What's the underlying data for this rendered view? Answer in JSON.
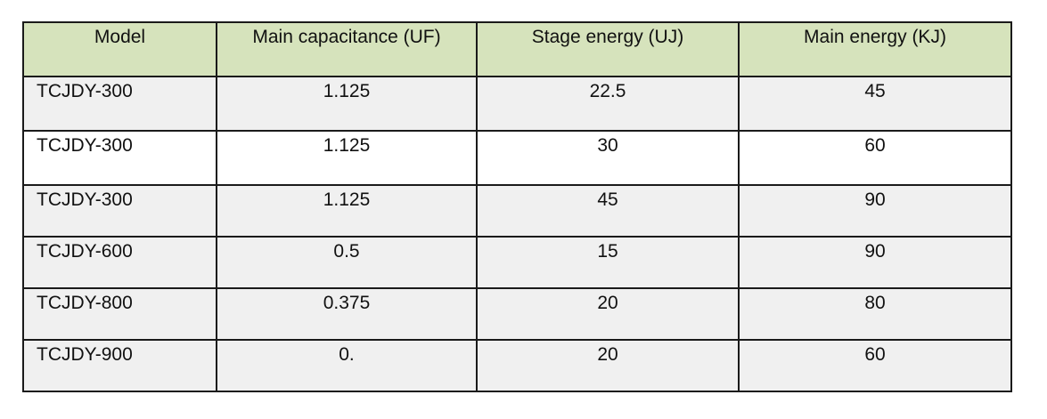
{
  "table": {
    "headers": [
      "Model",
      "Main capacitance (UF)",
      "Stage energy (UJ)",
      "Main energy (KJ)"
    ],
    "rows": [
      [
        "TCJDY-300",
        "1.125",
        "22.5",
        "45"
      ],
      [
        "TCJDY-300",
        "1.125",
        "30",
        "60"
      ],
      [
        "TCJDY-300",
        "1.125",
        "45",
        "90"
      ],
      [
        "TCJDY-600",
        "0.5",
        "15",
        "90"
      ],
      [
        "TCJDY-800",
        "0.375",
        "20",
        "80"
      ],
      [
        "TCJDY-900",
        "0.",
        "20",
        "60"
      ]
    ]
  },
  "colors": {
    "header_background": "#d6e3bc",
    "row_shaded": "#f0f0f0",
    "row_plain": "#ffffff",
    "border": "#1a1a1a"
  }
}
